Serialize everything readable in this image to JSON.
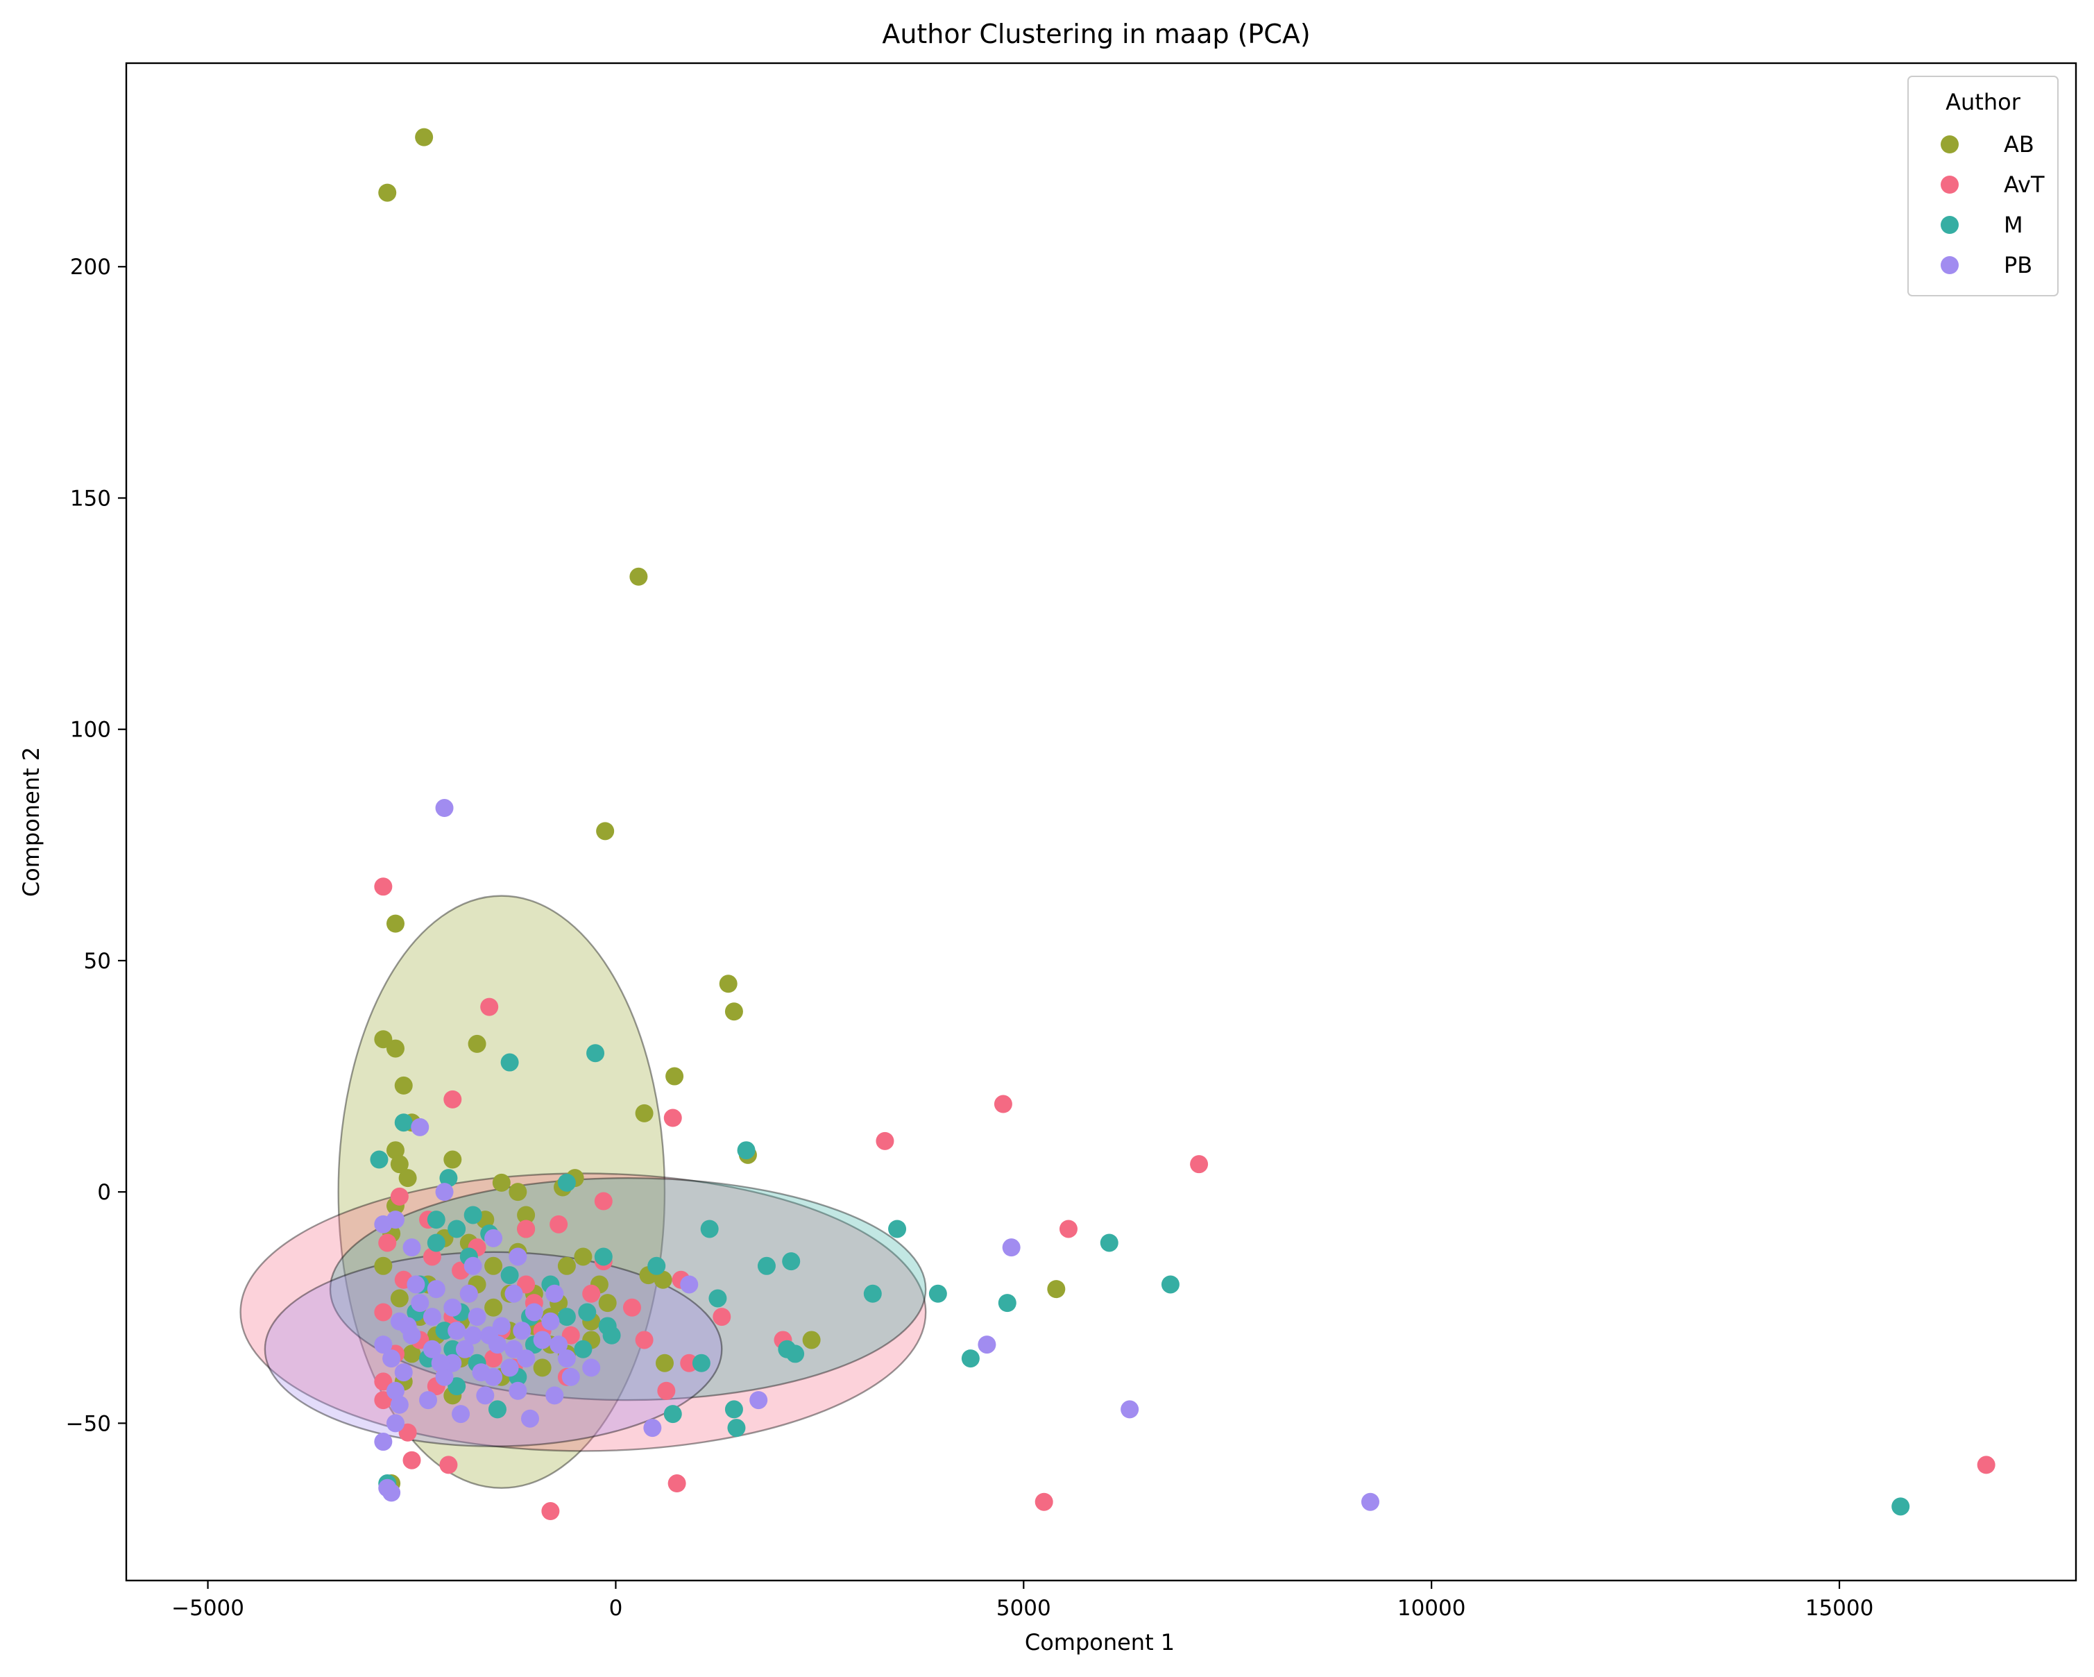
{
  "chart_data": {
    "type": "scatter",
    "title": "Author Clustering in maap (PCA)",
    "xlabel": "Component 1",
    "ylabel": "Component 2",
    "xlim": [
      -6000,
      17900
    ],
    "ylim": [
      -84,
      244
    ],
    "xticks": [
      -5000,
      0,
      5000,
      10000,
      15000
    ],
    "yticks": [
      -50,
      0,
      50,
      100,
      150,
      200
    ],
    "xtick_labels": [
      "−5000",
      "0",
      "5000",
      "10000",
      "15000"
    ],
    "ytick_labels": [
      "−50",
      "0",
      "50",
      "100",
      "150",
      "200"
    ],
    "grid": false,
    "legend": {
      "title": "Author",
      "position": "top-right"
    },
    "ellipses": [
      {
        "series": "AB",
        "cx": -1400,
        "cy": 0,
        "rx": 2000,
        "ry": 64
      },
      {
        "series": "AvT",
        "cx": -400,
        "cy": -26,
        "rx": 4200,
        "ry": 30
      },
      {
        "series": "M",
        "cx": 150,
        "cy": -21,
        "rx": 3650,
        "ry": 24
      },
      {
        "series": "PB",
        "cx": -1500,
        "cy": -34,
        "rx": 2800,
        "ry": 21
      }
    ],
    "series": [
      {
        "name": "AB",
        "color": "#97a431",
        "points": [
          [
            -2350,
            228
          ],
          [
            -2800,
            216
          ],
          [
            280,
            133
          ],
          [
            -130,
            78
          ],
          [
            -2700,
            58
          ],
          [
            1380,
            45
          ],
          [
            1450,
            39
          ],
          [
            -2850,
            33
          ],
          [
            -2700,
            31
          ],
          [
            -1700,
            32
          ],
          [
            720,
            25
          ],
          [
            -2600,
            23
          ],
          [
            350,
            17
          ],
          [
            -2500,
            15
          ],
          [
            1620,
            8
          ],
          [
            -2700,
            9
          ],
          [
            -2000,
            7
          ],
          [
            -2650,
            6
          ],
          [
            -1400,
            2
          ],
          [
            -500,
            3
          ],
          [
            -650,
            1
          ],
          [
            -1200,
            0
          ],
          [
            -2550,
            3
          ],
          [
            -1100,
            -5
          ],
          [
            -2700,
            -3
          ],
          [
            -1600,
            -6
          ],
          [
            -2750,
            -9
          ],
          [
            -1800,
            -11
          ],
          [
            -600,
            -16
          ],
          [
            -2850,
            -16
          ],
          [
            -1200,
            -13
          ],
          [
            400,
            -18
          ],
          [
            -100,
            -24
          ],
          [
            580,
            -19
          ],
          [
            5400,
            -21
          ],
          [
            -1500,
            -25
          ],
          [
            -2650,
            -23
          ],
          [
            -800,
            -27
          ],
          [
            -1300,
            -30
          ],
          [
            2400,
            -32
          ],
          [
            -300,
            -32
          ],
          [
            -2500,
            -35
          ],
          [
            -1400,
            -40
          ],
          [
            -600,
            -35
          ],
          [
            600,
            -37
          ],
          [
            -1900,
            -28
          ],
          [
            -2200,
            -31
          ],
          [
            -1000,
            -22
          ],
          [
            -1700,
            -20
          ],
          [
            -400,
            -14
          ],
          [
            -900,
            -38
          ],
          [
            -2750,
            -63
          ],
          [
            -2100,
            -10
          ],
          [
            -1100,
            -8
          ],
          [
            -300,
            -28
          ],
          [
            -2300,
            -20
          ],
          [
            -1500,
            -16
          ],
          [
            -800,
            -33
          ],
          [
            -2000,
            -44
          ],
          [
            -2600,
            -41
          ],
          [
            -700,
            -24
          ],
          [
            -1300,
            -22
          ],
          [
            -1900,
            -36
          ],
          [
            -2400,
            -27
          ],
          [
            -1000,
            -29
          ],
          [
            -200,
            -20
          ]
        ]
      },
      {
        "name": "AvT",
        "color": "#f46a83",
        "points": [
          [
            16800,
            -59
          ],
          [
            -2850,
            66
          ],
          [
            -1550,
            40
          ],
          [
            -2000,
            20
          ],
          [
            4750,
            19
          ],
          [
            700,
            16
          ],
          [
            3300,
            11
          ],
          [
            7150,
            6
          ],
          [
            -2650,
            -1
          ],
          [
            -150,
            -2
          ],
          [
            -2300,
            -6
          ],
          [
            5550,
            -8
          ],
          [
            -700,
            -7
          ],
          [
            -1100,
            -8
          ],
          [
            -2800,
            -11
          ],
          [
            -2250,
            -14
          ],
          [
            800,
            -19
          ],
          [
            1300,
            -27
          ],
          [
            -2850,
            -26
          ],
          [
            -1800,
            -22
          ],
          [
            -1100,
            -20
          ],
          [
            -1000,
            -24
          ],
          [
            -550,
            -31
          ],
          [
            -300,
            -22
          ],
          [
            350,
            -32
          ],
          [
            2050,
            -32
          ],
          [
            -2400,
            -32
          ],
          [
            -2100,
            -38
          ],
          [
            -2850,
            -41
          ],
          [
            -1500,
            -36
          ],
          [
            900,
            -37
          ],
          [
            -2200,
            -42
          ],
          [
            620,
            -43
          ],
          [
            -2550,
            -52
          ],
          [
            -2050,
            -59
          ],
          [
            -2500,
            -58
          ],
          [
            -800,
            -69
          ],
          [
            750,
            -63
          ],
          [
            5250,
            -67
          ],
          [
            -2850,
            -45
          ],
          [
            -1250,
            -38
          ],
          [
            -150,
            -15
          ],
          [
            -2600,
            -19
          ],
          [
            -1700,
            -12
          ],
          [
            -900,
            -30
          ],
          [
            200,
            -25
          ],
          [
            -2000,
            -27
          ],
          [
            -1400,
            -30
          ],
          [
            -2700,
            -35
          ],
          [
            -600,
            -40
          ],
          [
            -1900,
            -17
          ]
        ]
      },
      {
        "name": "M",
        "color": "#36aea3",
        "points": [
          [
            15750,
            -68
          ],
          [
            -1300,
            28
          ],
          [
            -250,
            30
          ],
          [
            -2600,
            15
          ],
          [
            -2900,
            7
          ],
          [
            1600,
            9
          ],
          [
            -2050,
            3
          ],
          [
            -600,
            2
          ],
          [
            1150,
            -8
          ],
          [
            3450,
            -8
          ],
          [
            6050,
            -11
          ],
          [
            -1950,
            -8
          ],
          [
            -1750,
            -5
          ],
          [
            -2200,
            -6
          ],
          [
            1850,
            -16
          ],
          [
            2150,
            -15
          ],
          [
            -150,
            -14
          ],
          [
            500,
            -16
          ],
          [
            6800,
            -20
          ],
          [
            3150,
            -22
          ],
          [
            3950,
            -22
          ],
          [
            4800,
            -24
          ],
          [
            1250,
            -23
          ],
          [
            -2450,
            -26
          ],
          [
            -1900,
            -26
          ],
          [
            -1050,
            -27
          ],
          [
            -350,
            -26
          ],
          [
            -100,
            -29
          ],
          [
            -50,
            -31
          ],
          [
            2100,
            -34
          ],
          [
            2200,
            -35
          ],
          [
            1050,
            -37
          ],
          [
            4350,
            -36
          ],
          [
            -1700,
            -37
          ],
          [
            -2300,
            -36
          ],
          [
            -1950,
            -42
          ],
          [
            -1450,
            -47
          ],
          [
            700,
            -48
          ],
          [
            1450,
            -47
          ],
          [
            1480,
            -51
          ],
          [
            -2800,
            -63
          ],
          [
            -2200,
            -11
          ],
          [
            -1550,
            -9
          ],
          [
            -800,
            -20
          ],
          [
            -1300,
            -18
          ],
          [
            -2100,
            -30
          ],
          [
            -1000,
            -33
          ],
          [
            -600,
            -27
          ],
          [
            -2400,
            -20
          ],
          [
            -1800,
            -14
          ],
          [
            -400,
            -34
          ],
          [
            -1200,
            -40
          ],
          [
            -2000,
            -34
          ]
        ]
      },
      {
        "name": "PB",
        "color": "#a18cf0",
        "points": [
          [
            -2100,
            83
          ],
          [
            -2400,
            14
          ],
          [
            -2100,
            0
          ],
          [
            -2850,
            -7
          ],
          [
            -2700,
            -6
          ],
          [
            -1500,
            -10
          ],
          [
            -1200,
            -14
          ],
          [
            4850,
            -12
          ],
          [
            -1750,
            -16
          ],
          [
            -2500,
            -12
          ],
          [
            900,
            -20
          ],
          [
            -2450,
            -20
          ],
          [
            -750,
            -22
          ],
          [
            -1250,
            -22
          ],
          [
            -2250,
            -27
          ],
          [
            -2650,
            -28
          ],
          [
            -1950,
            -30
          ],
          [
            -1550,
            -31
          ],
          [
            -2850,
            -33
          ],
          [
            -1850,
            -34
          ],
          [
            -1250,
            -34
          ],
          [
            -700,
            -33
          ],
          [
            -2250,
            -34
          ],
          [
            -2750,
            -36
          ],
          [
            -1650,
            -39
          ],
          [
            -2100,
            -40
          ],
          [
            -1200,
            -43
          ],
          [
            -2700,
            -43
          ],
          [
            -2650,
            -46
          ],
          [
            -550,
            -40
          ],
          [
            -300,
            -38
          ],
          [
            -1050,
            -49
          ],
          [
            -750,
            -44
          ],
          [
            -2850,
            -54
          ],
          [
            450,
            -51
          ],
          [
            1750,
            -45
          ],
          [
            4550,
            -33
          ],
          [
            6300,
            -47
          ],
          [
            -2800,
            -64
          ],
          [
            -2750,
            -65
          ],
          [
            9250,
            -67
          ],
          [
            -1400,
            -29
          ],
          [
            -1000,
            -26
          ],
          [
            -2400,
            -24
          ],
          [
            -1800,
            -22
          ],
          [
            -2000,
            -37
          ],
          [
            -1600,
            -44
          ],
          [
            -900,
            -32
          ],
          [
            -2600,
            -39
          ],
          [
            -1300,
            -38
          ],
          [
            -2200,
            -21
          ],
          [
            -1700,
            -27
          ],
          [
            -600,
            -36
          ],
          [
            -2500,
            -31
          ],
          [
            -1100,
            -36
          ],
          [
            -2000,
            -25
          ],
          [
            -1450,
            -33
          ],
          [
            -800,
            -28
          ],
          [
            -2300,
            -45
          ],
          [
            -1900,
            -48
          ],
          [
            -2700,
            -50
          ],
          [
            -1500,
            -40
          ],
          [
            -2550,
            -29
          ],
          [
            -1750,
            -31
          ],
          [
            -1150,
            -30
          ],
          [
            -2150,
            -37
          ]
        ]
      }
    ]
  }
}
